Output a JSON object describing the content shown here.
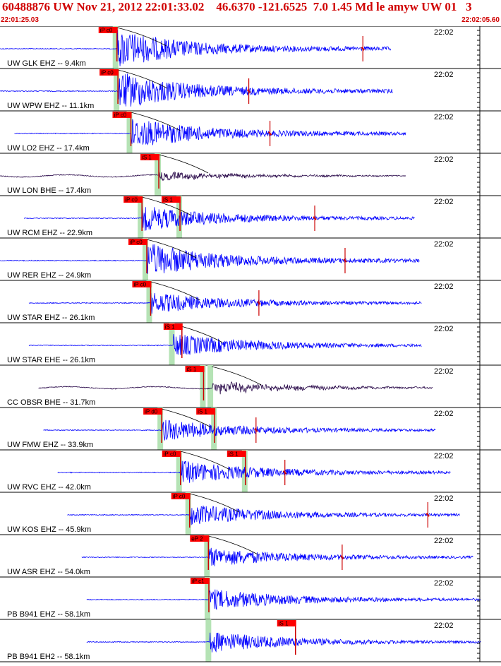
{
  "header": {
    "title": "60488876 UW Nov 21, 2012 22:01:33.02    46.6370 -121.6525  7.0 1.45 Md le amyw UW 01   3",
    "start_time": "22:01:25.03",
    "end_time": "22:02:05.60"
  },
  "time_tick_label": "22:02",
  "colors": {
    "title": "#d00000",
    "trace_vertical": "#0000ff",
    "trace_broadband": "#2a0a4a",
    "pick_box": "#ff0000",
    "pick_line": "#cc0000",
    "window_band": "#b5e3b5",
    "theoretical_curve": "#000000"
  },
  "stations": [
    {
      "label": "UW GLK EHZ -- 9.4km",
      "type": "vertical",
      "start": 0.0,
      "end": 0.812,
      "onset": 0.243,
      "amp": 1.0,
      "picks": [
        {
          "label": "iP c0",
          "pos": 0.243
        }
      ],
      "spike": 0.754
    },
    {
      "label": "UW WPW EHZ -- 11.1km",
      "type": "vertical",
      "start": 0.0,
      "end": 0.816,
      "onset": 0.245,
      "amp": 1.0,
      "picks": [
        {
          "label": "iP c0",
          "pos": 0.245
        }
      ],
      "spike": 0.517
    },
    {
      "label": "UW LO2 EHZ -- 17.4km",
      "type": "vertical",
      "start": 0.03,
      "end": 0.843,
      "onset": 0.272,
      "amp": 0.8,
      "picks": [
        {
          "label": "iP c0",
          "pos": 0.272
        }
      ],
      "spike": 0.561
    },
    {
      "label": "UW LON BHE -- 17.4km",
      "type": "broadband",
      "start": 0.0,
      "end": 0.843,
      "onset": 0.33,
      "amp": 0.35,
      "picks": [
        {
          "label": "iS 1",
          "pos": 0.33
        }
      ],
      "spike": null
    },
    {
      "label": "UW RCM EHZ -- 22.9km",
      "type": "vertical",
      "start": 0.05,
      "end": 0.862,
      "onset": 0.295,
      "amp": 0.65,
      "picks": [
        {
          "label": "iP c0",
          "pos": 0.295
        },
        {
          "label": "iS 1",
          "pos": 0.374
        }
      ],
      "spike": 0.654
    },
    {
      "label": "UW RER EHZ -- 24.9km",
      "type": "vertical",
      "start": 0.0,
      "end": 0.872,
      "onset": 0.305,
      "amp": 0.9,
      "picks": [
        {
          "label": "iP c0",
          "pos": 0.305
        }
      ],
      "spike": 0.717
    },
    {
      "label": "UW STAR EHZ -- 26.1km",
      "type": "vertical",
      "start": 0.06,
      "end": 0.876,
      "onset": 0.313,
      "amp": 0.55,
      "picks": [
        {
          "label": "iP c0",
          "pos": 0.313
        }
      ],
      "spike": 0.538
    },
    {
      "label": "UW STAR EHE -- 26.1km",
      "type": "vertical",
      "start": 0.06,
      "end": 0.876,
      "onset": 0.36,
      "amp": 0.6,
      "picks": [
        {
          "label": "iS 1",
          "pos": 0.378
        }
      ],
      "spike": null
    },
    {
      "label": "CC OBSR BHE -- 31.7km",
      "type": "broadband",
      "start": 0.08,
      "end": 0.9,
      "onset": 0.44,
      "amp": 0.5,
      "picks": [
        {
          "label": "iS 1",
          "pos": 0.423
        }
      ],
      "spike": null
    },
    {
      "label": "UW FMW EHZ -- 33.9km",
      "type": "vertical",
      "start": 0.09,
      "end": 0.905,
      "onset": 0.336,
      "amp": 0.55,
      "picks": [
        {
          "label": "iP d0",
          "pos": 0.336
        },
        {
          "label": "iS 1",
          "pos": 0.446
        }
      ],
      "spike": 0.532
    },
    {
      "label": "UW RVC EHZ -- 42.0km",
      "type": "vertical",
      "start": 0.12,
      "end": 0.937,
      "onset": 0.375,
      "amp": 0.6,
      "picks": [
        {
          "label": "iP c0",
          "pos": 0.375
        },
        {
          "label": "iS 1",
          "pos": 0.51
        }
      ],
      "spike": 0.592
    },
    {
      "label": "UW KOS EHZ -- 45.9km",
      "type": "vertical",
      "start": 0.14,
      "end": 0.955,
      "onset": 0.394,
      "amp": 0.55,
      "picks": [
        {
          "label": "iP c0",
          "pos": 0.394
        }
      ],
      "spike": 0.889
    },
    {
      "label": "UW ASR EHZ -- 54.0km",
      "type": "vertical",
      "start": 0.17,
      "end": 0.983,
      "onset": 0.433,
      "amp": 0.5,
      "picks": [
        {
          "label": "eP 2",
          "pos": 0.433
        }
      ],
      "spike": 0.711
    },
    {
      "label": "PB B941 EHZ -- 58.1km",
      "type": "vertical",
      "start": 0.18,
      "end": 1.0,
      "onset": 0.434,
      "amp": 0.55,
      "picks": [
        {
          "label": "iP c1",
          "pos": 0.434
        }
      ],
      "spike": null
    },
    {
      "label": "PB B941 EH2 -- 58.1km",
      "type": "vertical",
      "start": 0.18,
      "end": 1.0,
      "onset": 0.436,
      "amp": 0.55,
      "picks": [
        {
          "label": "iS 1",
          "pos": 0.614
        }
      ],
      "spike": null
    }
  ]
}
